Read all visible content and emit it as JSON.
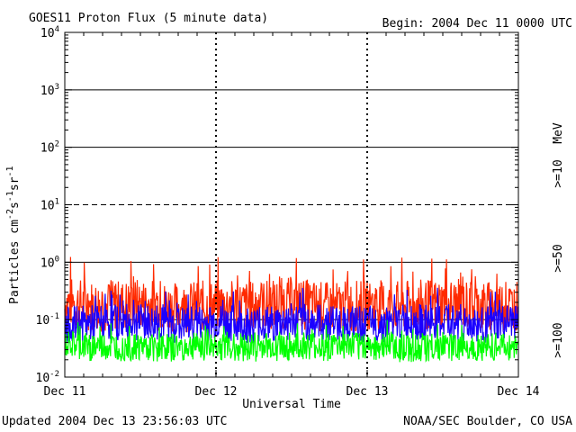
{
  "header": {
    "title": "GOES11 Proton Flux (5 minute data)",
    "begin": "Begin: 2004 Dec 11 0000 UTC"
  },
  "footer": {
    "updated": "Updated 2004 Dec 13 23:56:03 UTC",
    "credit": "NOAA/SEC Boulder, CO USA"
  },
  "colors": {
    "background": "#ffffff",
    "axes": "#000000",
    "ge10": "#ff2a00",
    "ge50": "#1a00ff",
    "ge100": "#00ff00"
  },
  "chart_data": {
    "type": "line",
    "title": "GOES11 Proton Flux (5 minute data)",
    "xlabel": "Universal Time",
    "ylabel": "Particles cm-2s-1sr-1",
    "yscale": "log",
    "ylim": [
      0.01,
      10000
    ],
    "xlim": [
      0,
      3
    ],
    "x_ticks": [
      "Dec 11",
      "Dec 12",
      "Dec 13",
      "Dec 14"
    ],
    "y_ticks": [
      {
        "base": "10",
        "exp": "-2",
        "value": 0.01
      },
      {
        "base": "10",
        "exp": "-1",
        "value": 0.1
      },
      {
        "base": "10",
        "exp": "0",
        "value": 1
      },
      {
        "base": "10",
        "exp": "1",
        "value": 10
      },
      {
        "base": "10",
        "exp": "2",
        "value": 100
      },
      {
        "base": "10",
        "exp": "3",
        "value": 1000
      },
      {
        "base": "10",
        "exp": "4",
        "value": 10000
      }
    ],
    "grid": {
      "solid": [
        0.1,
        1,
        100,
        1000
      ],
      "dashed": [
        10
      ]
    },
    "right_labels": {
      "unit": "MeV",
      "ge10": ">=10",
      "ge50": ">=50",
      "ge100": ">=100"
    },
    "series": [
      {
        "name": ">=10",
        "color": "#ff2a00",
        "x": [
          0,
          0.25,
          0.5,
          0.75,
          1,
          1.25,
          1.5,
          1.75,
          2,
          2.25,
          2.5,
          2.75,
          3
        ],
        "values": [
          0.2,
          0.17,
          0.19,
          0.16,
          0.18,
          0.17,
          0.2,
          0.16,
          0.18,
          0.17,
          0.19,
          0.17,
          0.18
        ]
      },
      {
        "name": ">=50",
        "color": "#1a00ff",
        "x": [
          0,
          0.25,
          0.5,
          0.75,
          1,
          1.25,
          1.5,
          1.75,
          2,
          2.25,
          2.5,
          2.75,
          3
        ],
        "values": [
          0.08,
          0.09,
          0.09,
          0.08,
          0.09,
          0.08,
          0.09,
          0.09,
          0.08,
          0.09,
          0.09,
          0.08,
          0.09
        ]
      },
      {
        "name": ">=100",
        "color": "#00ff00",
        "x": [
          0,
          0.25,
          0.5,
          0.75,
          1,
          1.25,
          1.5,
          1.75,
          2,
          2.25,
          2.5,
          2.75,
          3
        ],
        "values": [
          0.035,
          0.033,
          0.034,
          0.032,
          0.035,
          0.033,
          0.034,
          0.033,
          0.035,
          0.032,
          0.034,
          0.033,
          0.034
        ]
      }
    ]
  }
}
